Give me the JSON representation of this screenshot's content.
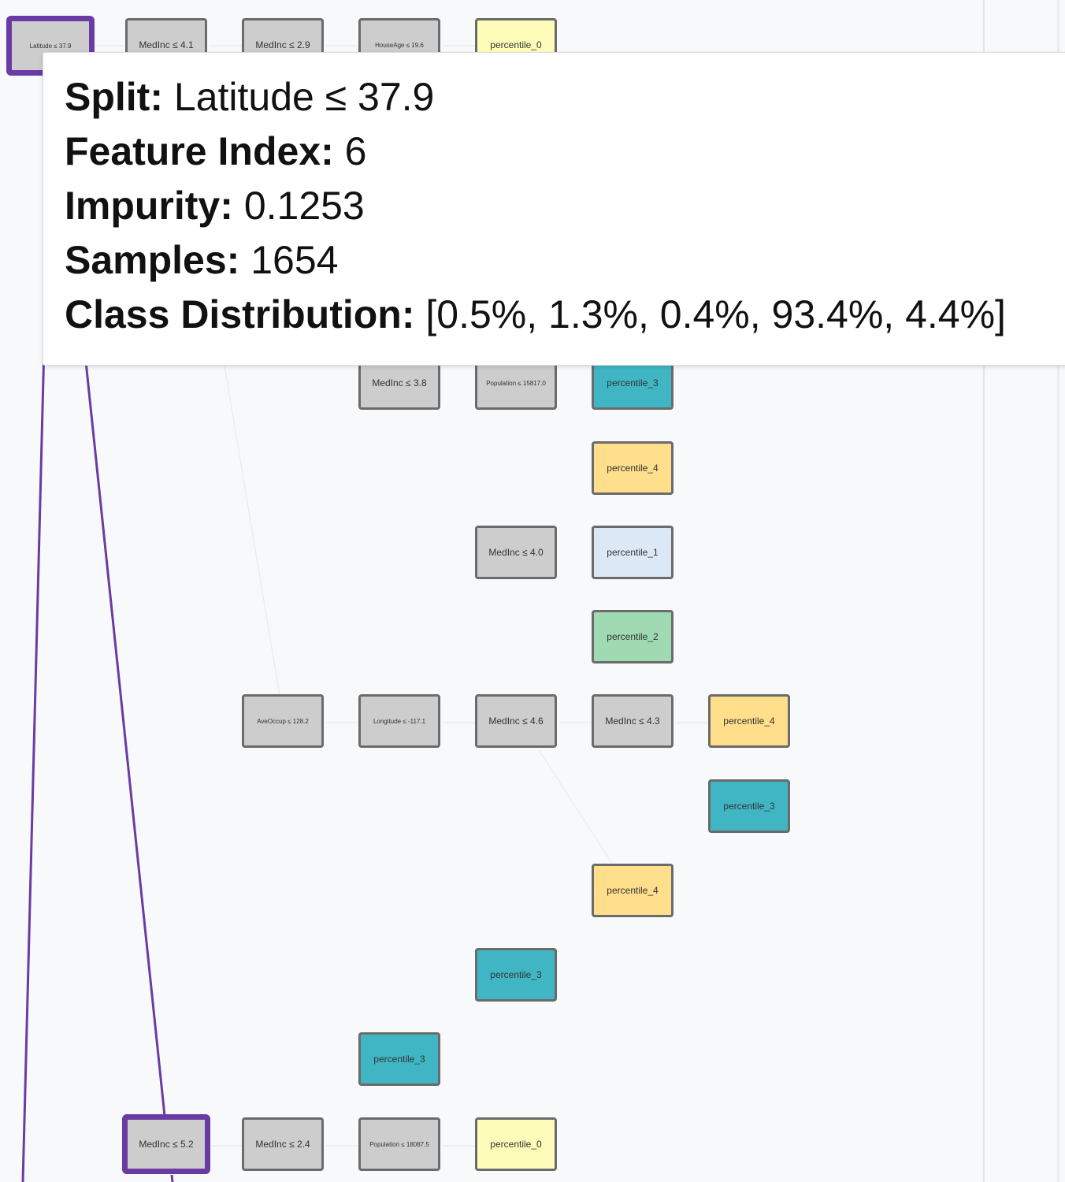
{
  "colors": {
    "split": "#cdcdcd",
    "percentile_0": "#fdfcb8",
    "percentile_1": "#dde8f6",
    "percentile_2": "#9fdab3",
    "percentile_3": "#40b6c4",
    "percentile_4": "#ffde8c",
    "highlight": "#6a3ba3"
  },
  "nodes": {
    "root": "Latitude ≤ 37.9",
    "n_a1": "MedInc ≤ 4.1",
    "n_a2": "MedInc ≤ 2.9",
    "n_a3": "HouseAge ≤ 19.6",
    "n_a4": "percentile_0",
    "n_b1": "MedInc ≤ 3.8",
    "n_b2": "Population ≤ 15817.0",
    "n_b3": "percentile_3",
    "n_b4": "percentile_4",
    "n_b5": "MedInc ≤ 4.0",
    "n_b6": "percentile_1",
    "n_b7": "percentile_2",
    "n_c1": "AveOccup ≤ 128.2",
    "n_c2": "Longitude ≤ -117.1",
    "n_c3": "MedInc ≤ 4.6",
    "n_c4": "MedInc ≤ 4.3",
    "n_c5": "percentile_4",
    "n_c6": "percentile_3",
    "n_c7": "percentile_4",
    "n_c8": "percentile_3",
    "n_c9": "percentile_3",
    "n_d1": "MedInc ≤ 5.2",
    "n_d2": "MedInc ≤ 2.4",
    "n_d3": "Population ≤ 18087.5",
    "n_d4": "percentile_0"
  },
  "tooltip": {
    "split_label": "Split:",
    "split_value": "Latitude ≤ 37.9",
    "feature_label": "Feature Index:",
    "feature_value": "6",
    "impurity_label": "Impurity:",
    "impurity_value": "0.1253",
    "samples_label": "Samples:",
    "samples_value": "1654",
    "dist_label": "Class Distribution:",
    "dist_value": "[0.5%, 1.3%, 0.4%, 93.4%, 4.4%]"
  }
}
